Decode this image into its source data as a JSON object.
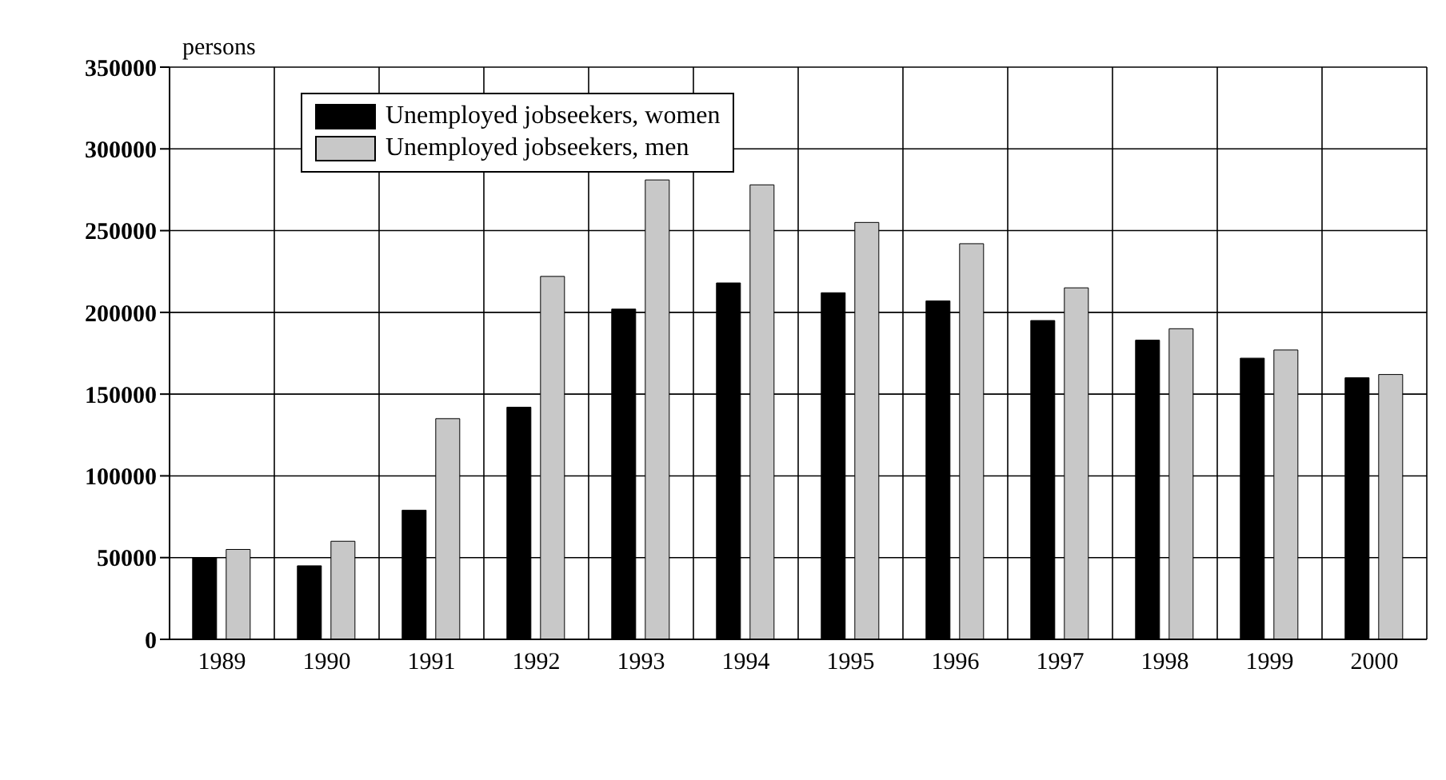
{
  "chart_data": {
    "type": "bar",
    "ylabel": "persons",
    "categories": [
      "1989",
      "1990",
      "1991",
      "1992",
      "1993",
      "1994",
      "1995",
      "1996",
      "1997",
      "1998",
      "1999",
      "2000"
    ],
    "series": [
      {
        "name": "Unemployed jobseekers, women",
        "color": "#000000",
        "values": [
          50000,
          45000,
          79000,
          142000,
          202000,
          218000,
          212000,
          207000,
          195000,
          183000,
          172000,
          160000
        ]
      },
      {
        "name": "Unemployed jobseekers, men",
        "color": "#c8c8c8",
        "values": [
          55000,
          60000,
          135000,
          222000,
          281000,
          278000,
          255000,
          242000,
          215000,
          190000,
          177000,
          162000
        ]
      }
    ],
    "ylim": [
      0,
      350000
    ],
    "yticks": [
      0,
      50000,
      100000,
      150000,
      200000,
      250000,
      300000,
      350000
    ],
    "grid": true,
    "legend": "top left"
  }
}
